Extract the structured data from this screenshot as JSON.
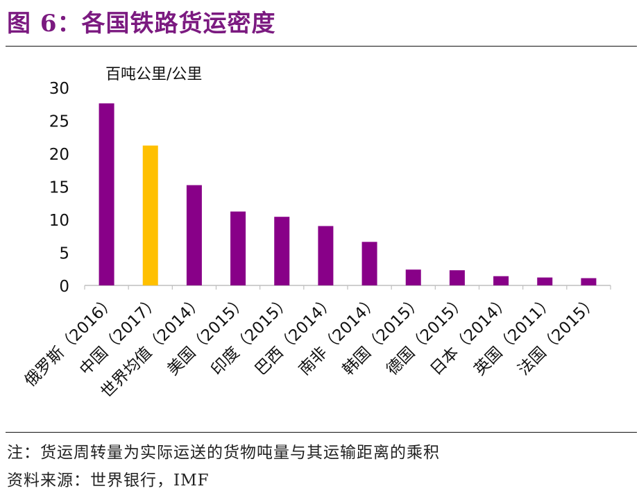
{
  "title": "图 6：各国铁路货运密度",
  "note": "注：货运周转量为实际运送的货物吨量与其运输距离的乘积",
  "source": "资料来源：世界银行，IMF",
  "colors": {
    "title": "#7b1a80",
    "bar": "#880088",
    "highlight": "#ffc000"
  },
  "chart_data": {
    "type": "bar",
    "unit_label": "百吨公里/公里",
    "ylim": [
      0,
      30
    ],
    "yticks": [
      0,
      5,
      10,
      15,
      20,
      25,
      30
    ],
    "grid": false,
    "categories": [
      "俄罗斯（2016）",
      "中国（2017）",
      "世界均值（2014）",
      "美国（2015）",
      "印度（2015）",
      "巴西（2014）",
      "南非（2014）",
      "韩国（2015）",
      "德国（2015）",
      "日本（2014）",
      "英国（2011）",
      "法国（2015）"
    ],
    "values": [
      27.6,
      21.2,
      15.2,
      11.2,
      10.4,
      9.0,
      6.6,
      2.4,
      2.3,
      1.4,
      1.2,
      1.1
    ],
    "highlight_index": 1
  }
}
